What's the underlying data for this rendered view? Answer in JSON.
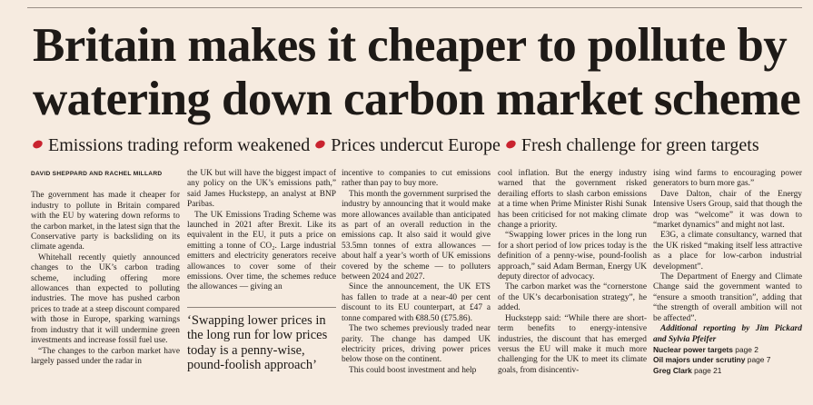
{
  "headline": {
    "lines": [
      "Britain makes it cheaper to pollute by",
      "watering down carbon market scheme"
    ]
  },
  "subheads": [
    "Emissions trading reform weakened",
    "Prices undercut Europe",
    "Fresh challenge for green targets"
  ],
  "byline": "DAVID SHEPPARD AND RACHEL MILLARD",
  "columns": [
    [
      "The government has made it cheaper for industry to pollute in Britain compared with the EU by watering down reforms to the carbon market, in the latest sign that the Conservative party is backsliding on its climate agenda.",
      "Whitehall recently quietly announced changes to the UK’s carbon trading scheme, including offering more allowances than expected to polluting industries. The move has pushed carbon prices to trade at a steep discount compared with those in Europe, sparking warnings from industry that it will undermine green investments and increase fossil fuel use.",
      "“The changes to the carbon market have largely passed under the radar in"
    ],
    [
      "the UK but will have the biggest impact of any policy on the UK’s emissions path,” said James Huckstepp, an analyst at BNP Paribas.",
      "The UK Emissions Trading Scheme was launched in 2021 after Brexit. Like its equivalent in the EU, it puts a price on emitting a tonne of CO₂. Large industrial emitters and electricity generators receive allowances to cover some of their emissions. Over time, the schemes reduce the allowances — giving an"
    ],
    [
      "incentive to companies to cut emissions rather than pay to buy more.",
      "This month the government surprised the industry by announcing that it would make more allowances available than anticipated as part of an overall reduction in the emissions cap. It also said it would give 53.5mn tonnes of extra allowances — about half a year’s worth of UK emissions covered by the scheme — to polluters between 2024 and 2027.",
      "Since the announcement, the UK ETS has fallen to trade at a near-40 per cent discount to its EU counterpart, at £47 a tonne compared with €88.50 (£75.86).",
      "The two schemes previously traded near parity. The change has damped UK electricity prices, driving power prices below those on the continent.",
      "This could boost investment and help"
    ],
    [
      "cool inflation. But the energy industry warned that the government risked derailing efforts to slash carbon emissions at a time when Prime Minister Rishi Sunak has been criticised for not making climate change a priority.",
      "“Swapping lower prices in the long run for a short period of low prices today is the definition of a penny-wise, pound-foolish approach,” said Adam Berman, Energy UK deputy director of advocacy.",
      "The carbon market was the “cornerstone of the UK’s decarbonisation strategy”, he added.",
      "Huckstepp said: “While there are short-term benefits to energy-intensive industries, the discount that has emerged versus the EU will make it much more challenging for the UK to meet its climate goals, from disincentiv-"
    ],
    [
      "ising wind farms to encouraging power generators to burn more gas.”",
      "Dave Dalton, chair of the Energy Intensive Users Group, said that though the drop was “welcome” it was down to “market dynamics” and might not last.",
      "E3G, a climate consultancy, warned that the UK risked “making itself less attractive as a place for low-carbon industrial development”.",
      "The Department of Energy and Climate Change said the government wanted to “ensure a smooth transition”, adding that “the strength of overall ambition will not be affected”."
    ]
  ],
  "pull_quote": "‘Swapping lower prices in the long run for low prices today is a penny-wise, pound-foolish approach’",
  "additional_reporting": "Additional reporting by Jim Pickard and Sylvia Pfeifer",
  "refs": [
    {
      "title": "Nuclear power targets",
      "page": "page 2"
    },
    {
      "title": "Oil majors under scrutiny",
      "page": "page 7"
    },
    {
      "title": "Greg Clark",
      "page": "page 21"
    }
  ]
}
